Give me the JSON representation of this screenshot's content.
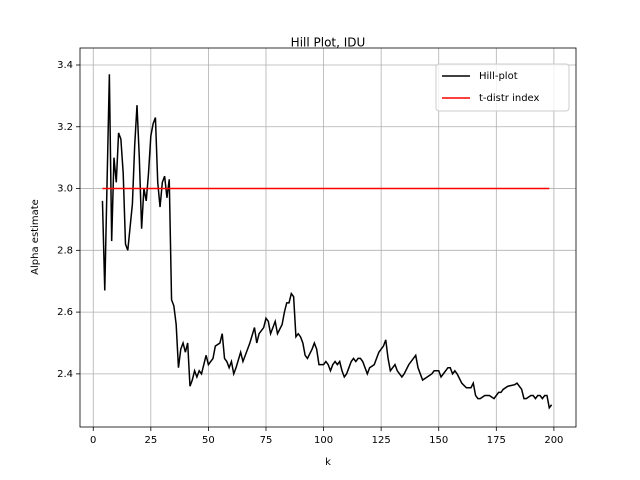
{
  "chart_data": {
    "type": "line",
    "title": "Hill Plot, IDU",
    "x_label": "k",
    "y_label": "Alpha estimate",
    "xlim": [
      -5.75,
      209.6
    ],
    "ylim": [
      2.228,
      3.455
    ],
    "xticks": [
      0,
      25,
      50,
      75,
      100,
      125,
      150,
      175,
      200
    ],
    "yticks": [
      2.4,
      2.6,
      2.8,
      {
        "value": 3.0,
        "label": "3.0"
      },
      3.2,
      3.4
    ],
    "grid": true,
    "legend": "upper right",
    "series": [
      {
        "name": "Hill-plot",
        "color": "#000000",
        "x": [
          4,
          5,
          7,
          8,
          9,
          10,
          11,
          12,
          13,
          14,
          15,
          17,
          18,
          19,
          20,
          21,
          22,
          23,
          24,
          25,
          26,
          27,
          28,
          29,
          30,
          31,
          32,
          33,
          34,
          35,
          36,
          37,
          38,
          39,
          40,
          41,
          42,
          43,
          44,
          45,
          46,
          47,
          48,
          49,
          50,
          52,
          53,
          55,
          56,
          57,
          58,
          59,
          60,
          61,
          62,
          64,
          65,
          66,
          68,
          70,
          71,
          72,
          74,
          75,
          76,
          77,
          79,
          80,
          82,
          83,
          84,
          85,
          86,
          87,
          88,
          89,
          90,
          91,
          92,
          93,
          95,
          96,
          97,
          98,
          100,
          101,
          102,
          103,
          104,
          105,
          106,
          107,
          108,
          109,
          110,
          111,
          112,
          113,
          114,
          115,
          116,
          117,
          119,
          120,
          122,
          124,
          126,
          127,
          128,
          129,
          130,
          131,
          132,
          134,
          135,
          137,
          139,
          140,
          141,
          142,
          143,
          145,
          147,
          148,
          150,
          151,
          152,
          154,
          155,
          156,
          157,
          158,
          160,
          162,
          164,
          165,
          166,
          167,
          168,
          170,
          172,
          174,
          176,
          177,
          178,
          180,
          183,
          184,
          186,
          187,
          188,
          190,
          191,
          192,
          193,
          194,
          195,
          196,
          197,
          198,
          199
        ],
        "values": [
          2.96,
          2.67,
          3.37,
          2.83,
          3.1,
          3.02,
          3.18,
          3.16,
          3.05,
          2.82,
          2.8,
          2.95,
          3.14,
          3.27,
          3.1,
          2.87,
          3.0,
          2.96,
          3.05,
          3.17,
          3.21,
          3.23,
          3.02,
          2.94,
          3.02,
          3.04,
          2.97,
          3.03,
          2.64,
          2.62,
          2.56,
          2.42,
          2.48,
          2.5,
          2.47,
          2.5,
          2.36,
          2.38,
          2.41,
          2.39,
          2.41,
          2.4,
          2.43,
          2.46,
          2.43,
          2.45,
          2.49,
          2.5,
          2.53,
          2.45,
          2.44,
          2.42,
          2.44,
          2.4,
          2.42,
          2.47,
          2.44,
          2.46,
          2.5,
          2.55,
          2.5,
          2.53,
          2.55,
          2.58,
          2.57,
          2.53,
          2.57,
          2.53,
          2.56,
          2.6,
          2.63,
          2.63,
          2.66,
          2.65,
          2.52,
          2.53,
          2.52,
          2.5,
          2.46,
          2.45,
          2.48,
          2.5,
          2.48,
          2.43,
          2.43,
          2.44,
          2.43,
          2.41,
          2.43,
          2.44,
          2.43,
          2.44,
          2.41,
          2.39,
          2.4,
          2.42,
          2.44,
          2.45,
          2.44,
          2.45,
          2.45,
          2.44,
          2.4,
          2.42,
          2.43,
          2.47,
          2.49,
          2.51,
          2.45,
          2.41,
          2.42,
          2.43,
          2.41,
          2.39,
          2.4,
          2.43,
          2.45,
          2.46,
          2.42,
          2.4,
          2.38,
          2.39,
          2.4,
          2.41,
          2.41,
          2.39,
          2.4,
          2.42,
          2.42,
          2.4,
          2.41,
          2.4,
          2.37,
          2.355,
          2.355,
          2.37,
          2.33,
          2.32,
          2.32,
          2.33,
          2.33,
          2.32,
          2.34,
          2.34,
          2.35,
          2.36,
          2.365,
          2.37,
          2.35,
          2.32,
          2.32,
          2.33,
          2.33,
          2.32,
          2.33,
          2.33,
          2.32,
          2.33,
          2.33,
          2.29,
          2.3
        ]
      },
      {
        "name": "t-distr index",
        "color": "#ff0000",
        "x": [
          4,
          198
        ],
        "values": [
          3,
          3
        ]
      }
    ]
  }
}
